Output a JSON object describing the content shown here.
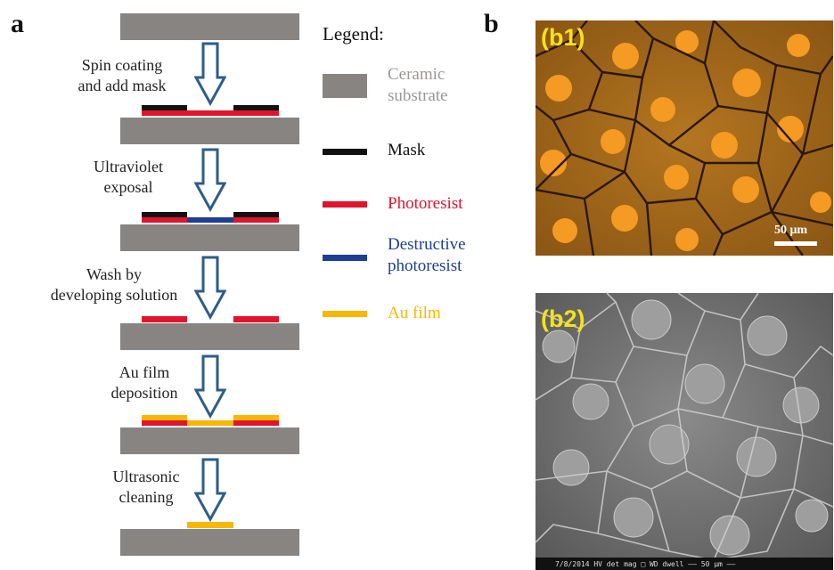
{
  "panels": {
    "a": "a",
    "b": "b"
  },
  "steps": [
    "Spin coating\nand add mask",
    "Ultraviolet\nexposal",
    "Wash by\ndeveloping solution",
    "Au film\ndeposition",
    "Ultrasonic\ncleaning"
  ],
  "legend": {
    "title": "Legend:",
    "items": [
      {
        "label": "Ceramic\nsubstrate",
        "color": "#878482",
        "text_color": "#9a9896"
      },
      {
        "label": "Mask",
        "color": "#111111",
        "text_color": "#111111"
      },
      {
        "label": "Photoresist",
        "color": "#e0142d",
        "text_color": "#e0142d"
      },
      {
        "label": "Destructive\nphotoresist",
        "color": "#1d3f94",
        "text_color": "#1d3f94"
      },
      {
        "label": "Au film",
        "color": "#f8b700",
        "text_color": "#f8b700"
      }
    ]
  },
  "micrographs": {
    "b1": {
      "label": "(b1)",
      "scale": "50 μm"
    },
    "b2": {
      "label": "(b2)",
      "footer": "7/8/2014   HV   det  mag □   WD   dwell   —— 50 μm ——"
    }
  },
  "colors": {
    "arrow": "#2e5c8a",
    "optical_bg": "#a86a1c",
    "label_yellow": "#f5e21a"
  }
}
